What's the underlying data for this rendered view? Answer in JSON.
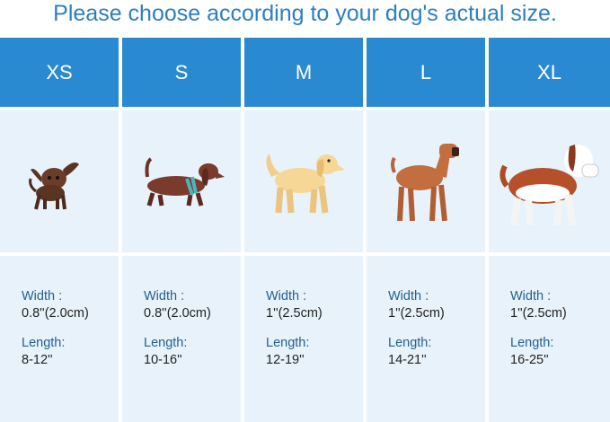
{
  "title": "Please choose according to your dog's actual size.",
  "colors": {
    "header": "#2a8ad1",
    "cell": "#e7f2fa",
    "title": "#2b7fc1"
  },
  "sizes": [
    {
      "label": "XS",
      "width_label": "Width :",
      "width": "0.8''(2.0cm)",
      "length_label": "Length:",
      "length": "8-12''",
      "dog": "chihuahua-icon"
    },
    {
      "label": "S",
      "width_label": "Width :",
      "width": "0.8''(2.0cm)",
      "length_label": "Length:",
      "length": "10-16''",
      "dog": "dachshund-icon"
    },
    {
      "label": "M",
      "width_label": "Width :",
      "width": "1''(2.5cm)",
      "length_label": "Length:",
      "length": "12-19''",
      "dog": "golden-retriever-icon"
    },
    {
      "label": "L",
      "width_label": "Width :",
      "width": "1''(2.5cm)",
      "length_label": "Length:",
      "length": "14-21''",
      "dog": "boxer-icon"
    },
    {
      "label": "XL",
      "width_label": "Width :",
      "width": "1''(2.5cm)",
      "length_label": "Length:",
      "length": "16-25''",
      "dog": "saint-bernard-icon"
    }
  ]
}
